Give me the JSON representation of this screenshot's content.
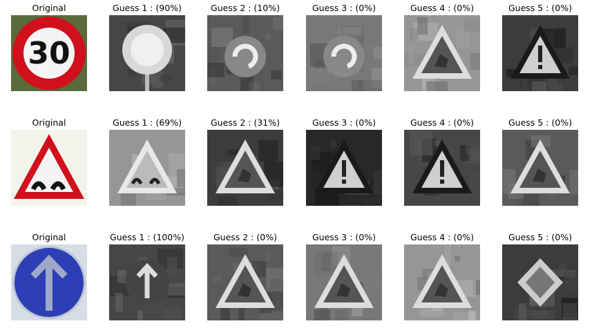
{
  "rows": [
    {
      "original": {
        "title": "Original",
        "sign": "speed-limit-30",
        "number": "30"
      },
      "guesses": [
        {
          "title": "Guess 1 : (90%)",
          "sign": "speed-limit"
        },
        {
          "title": "Guess 2 : (10%)",
          "sign": "roundabout"
        },
        {
          "title": "Guess 3 : (0%)",
          "sign": "roundabout"
        },
        {
          "title": "Guess 4 : (0%)",
          "sign": "warning-triangle"
        },
        {
          "title": "Guess 5 : (0%)",
          "sign": "general-caution"
        }
      ]
    },
    {
      "original": {
        "title": "Original",
        "sign": "bumpy-road"
      },
      "guesses": [
        {
          "title": "Guess 1 : (69%)",
          "sign": "bumpy-road"
        },
        {
          "title": "Guess 2 : (31%)",
          "sign": "warning-triangle"
        },
        {
          "title": "Guess 3 : (0%)",
          "sign": "general-caution"
        },
        {
          "title": "Guess 4 : (0%)",
          "sign": "general-caution"
        },
        {
          "title": "Guess 5 : (0%)",
          "sign": "warning-triangle"
        }
      ]
    },
    {
      "original": {
        "title": "Original",
        "sign": "ahead-only"
      },
      "guesses": [
        {
          "title": "Guess 1 : (100%)",
          "sign": "ahead-only"
        },
        {
          "title": "Guess 2 : (0%)",
          "sign": "warning-triangle"
        },
        {
          "title": "Guess 3 : (0%)",
          "sign": "warning-triangle"
        },
        {
          "title": "Guess 4 : (0%)",
          "sign": "warning-triangle"
        },
        {
          "title": "Guess 5 : (0%)",
          "sign": "priority-road"
        }
      ]
    }
  ],
  "colors": {
    "sign_red": "#d0101c",
    "sign_blue": "#2d3fb5",
    "sign_white": "#f4f4f4"
  }
}
